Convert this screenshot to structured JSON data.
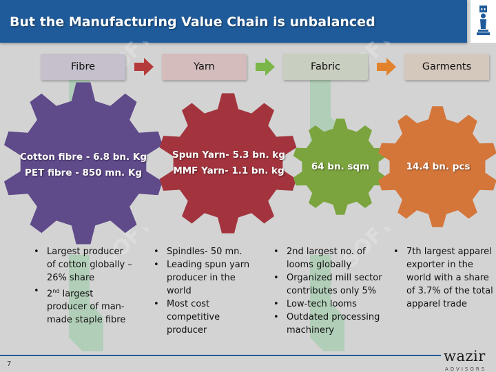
{
  "header": {
    "title": "But the Manufacturing Value Chain is unbalanced"
  },
  "logo": {
    "name": "chess-piece-logo"
  },
  "stages": [
    {
      "label": "Fibre",
      "color": "#c5c0cc"
    },
    {
      "label": "Yarn",
      "color": "#d4bcbc"
    },
    {
      "label": "Fabric",
      "color": "#c8cfc0"
    },
    {
      "label": "Garments",
      "color": "#d4c7bc"
    }
  ],
  "arrow_colors": [
    "#b53a3a",
    "#7ab648",
    "#e3822d"
  ],
  "gears": [
    {
      "lines": [
        "Cotton fibre - 6.8 bn. Kg",
        "PET fibre - 850 mn. Kg"
      ],
      "color": "#5f4a8a"
    },
    {
      "lines": [
        "Spun Yarn- 5.3 bn. kg",
        "MMF Yarn- 1.1 bn. kg"
      ],
      "color": "#a3343e"
    },
    {
      "lines": [
        "64 bn. sqm"
      ],
      "color": "#7ba43e"
    },
    {
      "lines": [
        "14.4 bn. pcs"
      ],
      "color": "#d4763a"
    }
  ],
  "bullets": {
    "fibre": [
      "Largest producer of cotton globally – 26% share",
      "largest producer of man-made staple fibre"
    ],
    "fibre_ordinal": {
      "num": "2",
      "suffix": "nd"
    },
    "yarn": [
      "Spindles- 50 mn.",
      "Leading spun yarn producer in the world",
      "Most cost competitive producer"
    ],
    "fabric": [
      "2nd largest no. of looms globally",
      "Organized mill sector contributes only 5%",
      "Low-tech looms",
      "Outdated processing machinery"
    ],
    "garments": [
      "7th largest apparel exporter in the world with a share of 3.7% of the total apparel trade"
    ]
  },
  "watermark_text": "SOFT",
  "footer": {
    "page_number": "7",
    "brand": "wazir",
    "brand_sub": "ADVISORS"
  }
}
